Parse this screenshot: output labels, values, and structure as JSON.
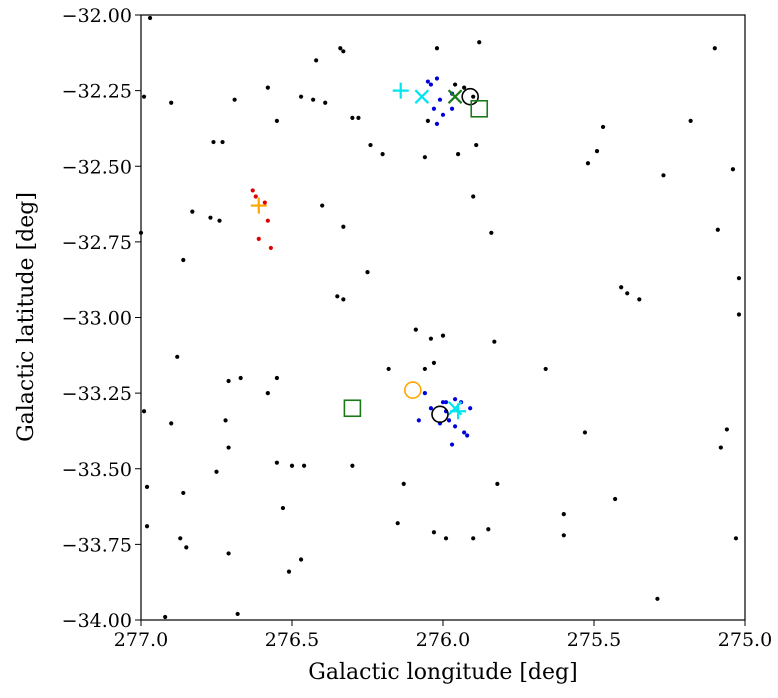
{
  "chart_data": {
    "type": "scatter",
    "title": "",
    "xlabel": "Galactic longitude [deg]",
    "ylabel": "Galactic latitude [deg]",
    "xlim": [
      277.0,
      275.0
    ],
    "ylim": [
      -34.0,
      -32.0
    ],
    "x_inverted": true,
    "grid": false,
    "legend": "none",
    "x_ticks": [
      277.0,
      276.5,
      276.0,
      275.5,
      275.0
    ],
    "x_tick_labels": [
      "277.0",
      "276.5",
      "276.0",
      "275.5",
      "275.0"
    ],
    "y_ticks": [
      -32.0,
      -32.25,
      -32.5,
      -32.75,
      -33.0,
      -33.25,
      -33.5,
      -33.75,
      -34.0
    ],
    "y_tick_labels": [
      "−32.00",
      "−32.25",
      "−32.50",
      "−32.75",
      "−33.00",
      "−33.25",
      "−33.50",
      "−33.75",
      "−34.00"
    ],
    "series": [
      {
        "marker": "dot",
        "color": "#000000",
        "points": [
          [
            276.97,
            -32.01
          ],
          [
            276.99,
            -32.27
          ],
          [
            277.0,
            -32.72
          ],
          [
            276.99,
            -33.31
          ],
          [
            276.98,
            -33.56
          ],
          [
            276.98,
            -33.69
          ],
          [
            276.9,
            -32.29
          ],
          [
            276.76,
            -32.42
          ],
          [
            276.73,
            -32.42
          ],
          [
            276.69,
            -32.28
          ],
          [
            276.58,
            -32.24
          ],
          [
            276.55,
            -32.35
          ],
          [
            276.83,
            -32.65
          ],
          [
            276.77,
            -32.67
          ],
          [
            276.74,
            -32.68
          ],
          [
            276.86,
            -32.81
          ],
          [
            276.88,
            -33.13
          ],
          [
            276.9,
            -33.35
          ],
          [
            276.86,
            -33.58
          ],
          [
            276.87,
            -33.73
          ],
          [
            276.85,
            -33.76
          ],
          [
            276.72,
            -33.34
          ],
          [
            276.71,
            -33.21
          ],
          [
            276.67,
            -33.2
          ],
          [
            276.71,
            -33.43
          ],
          [
            276.75,
            -33.51
          ],
          [
            276.71,
            -33.78
          ],
          [
            276.68,
            -33.98
          ],
          [
            276.92,
            -33.99
          ],
          [
            276.55,
            -33.48
          ],
          [
            276.5,
            -33.49
          ],
          [
            276.46,
            -33.49
          ],
          [
            276.53,
            -33.63
          ],
          [
            276.51,
            -33.84
          ],
          [
            276.47,
            -33.8
          ],
          [
            276.58,
            -33.25
          ],
          [
            276.55,
            -33.2
          ],
          [
            276.47,
            -32.27
          ],
          [
            276.43,
            -32.28
          ],
          [
            276.39,
            -32.29
          ],
          [
            276.42,
            -32.15
          ],
          [
            276.34,
            -32.11
          ],
          [
            276.33,
            -32.12
          ],
          [
            276.3,
            -32.34
          ],
          [
            276.28,
            -32.34
          ],
          [
            276.24,
            -32.43
          ],
          [
            276.2,
            -32.46
          ],
          [
            276.4,
            -32.63
          ],
          [
            276.33,
            -32.7
          ],
          [
            276.25,
            -32.85
          ],
          [
            276.35,
            -32.93
          ],
          [
            276.33,
            -32.94
          ],
          [
            276.3,
            -33.49
          ],
          [
            276.18,
            -33.17
          ],
          [
            276.13,
            -33.55
          ],
          [
            276.15,
            -33.68
          ],
          [
            276.02,
            -32.11
          ],
          [
            275.96,
            -32.23
          ],
          [
            275.93,
            -32.24
          ],
          [
            275.9,
            -32.27
          ],
          [
            275.95,
            -32.46
          ],
          [
            275.89,
            -32.43
          ],
          [
            275.9,
            -32.6
          ],
          [
            275.84,
            -32.72
          ],
          [
            275.88,
            -32.09
          ],
          [
            276.05,
            -32.35
          ],
          [
            276.06,
            -32.47
          ],
          [
            276.09,
            -33.04
          ],
          [
            276.0,
            -33.06
          ],
          [
            276.03,
            -33.15
          ],
          [
            276.06,
            -33.17
          ],
          [
            276.04,
            -33.07
          ],
          [
            275.83,
            -33.08
          ],
          [
            275.82,
            -33.55
          ],
          [
            275.85,
            -33.7
          ],
          [
            275.9,
            -33.73
          ],
          [
            276.03,
            -33.71
          ],
          [
            275.99,
            -33.73
          ],
          [
            275.66,
            -33.17
          ],
          [
            275.52,
            -32.49
          ],
          [
            275.49,
            -32.45
          ],
          [
            275.47,
            -32.37
          ],
          [
            275.41,
            -32.9
          ],
          [
            275.39,
            -32.92
          ],
          [
            275.35,
            -32.94
          ],
          [
            275.27,
            -32.53
          ],
          [
            275.18,
            -32.35
          ],
          [
            275.1,
            -32.11
          ],
          [
            275.09,
            -32.71
          ],
          [
            275.04,
            -32.51
          ],
          [
            275.02,
            -32.87
          ],
          [
            275.02,
            -32.99
          ],
          [
            275.53,
            -33.38
          ],
          [
            275.6,
            -33.65
          ],
          [
            275.43,
            -33.6
          ],
          [
            275.29,
            -33.93
          ],
          [
            275.06,
            -33.37
          ],
          [
            275.08,
            -33.43
          ],
          [
            275.03,
            -33.73
          ],
          [
            275.6,
            -33.72
          ]
        ]
      },
      {
        "marker": "dot",
        "color": "#0000dd",
        "points": [
          [
            276.05,
            -32.22
          ],
          [
            276.04,
            -32.23
          ],
          [
            276.02,
            -32.21
          ],
          [
            276.01,
            -32.28
          ],
          [
            275.97,
            -32.26
          ],
          [
            276.03,
            -32.31
          ],
          [
            275.97,
            -32.31
          ],
          [
            276.0,
            -32.33
          ],
          [
            276.02,
            -32.36
          ],
          [
            276.06,
            -33.25
          ],
          [
            276.0,
            -33.28
          ],
          [
            275.99,
            -33.28
          ],
          [
            275.94,
            -33.28
          ],
          [
            275.96,
            -33.27
          ],
          [
            275.91,
            -33.3
          ],
          [
            276.04,
            -33.3
          ],
          [
            275.99,
            -33.31
          ],
          [
            276.08,
            -33.34
          ],
          [
            276.01,
            -33.35
          ],
          [
            275.98,
            -33.34
          ],
          [
            275.96,
            -33.36
          ],
          [
            275.93,
            -33.38
          ],
          [
            275.92,
            -33.39
          ],
          [
            275.97,
            -33.42
          ]
        ]
      },
      {
        "marker": "dot",
        "color": "#dd0000",
        "points": [
          [
            276.63,
            -32.58
          ],
          [
            276.62,
            -32.6
          ],
          [
            276.59,
            -32.62
          ],
          [
            276.58,
            -32.68
          ],
          [
            276.61,
            -32.74
          ],
          [
            276.57,
            -32.77
          ]
        ]
      },
      {
        "marker": "plus",
        "color": "#ffa500",
        "points": [
          [
            276.61,
            -32.63
          ]
        ]
      },
      {
        "marker": "plus",
        "color": "#00e5ee",
        "points": [
          [
            276.14,
            -32.25
          ],
          [
            275.95,
            -33.31
          ]
        ]
      },
      {
        "marker": "x",
        "color": "#00e5ee",
        "points": [
          [
            276.07,
            -32.27
          ],
          [
            275.96,
            -33.3
          ]
        ]
      },
      {
        "marker": "x",
        "color": "#1a7a1a",
        "points": [
          [
            275.96,
            -32.27
          ]
        ]
      },
      {
        "marker": "circle",
        "color": "#000000",
        "points": [
          [
            275.91,
            -32.27
          ],
          [
            276.01,
            -33.32
          ]
        ]
      },
      {
        "marker": "circle",
        "color": "#ffa500",
        "points": [
          [
            276.1,
            -33.24
          ]
        ]
      },
      {
        "marker": "square",
        "color": "#1a7a1a",
        "points": [
          [
            275.88,
            -32.31
          ],
          [
            276.3,
            -33.3
          ]
        ]
      }
    ]
  }
}
